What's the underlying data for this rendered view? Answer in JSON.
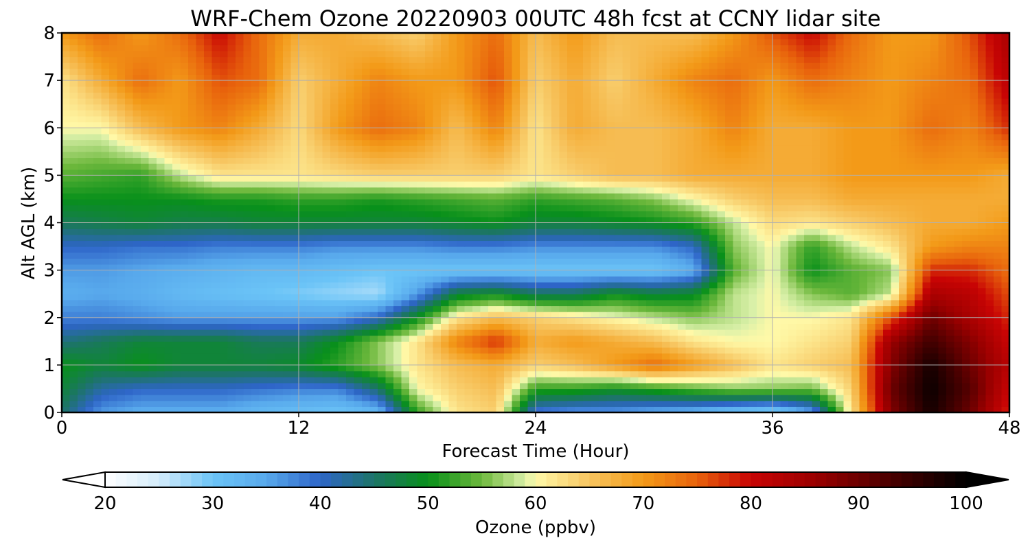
{
  "chart_data": {
    "type": "heatmap",
    "title": "WRF-Chem Ozone  20220903 00UTC 48h fcst at CCNY lidar site",
    "xlabel": "Forecast Time (Hour)",
    "ylabel": "Alt AGL (km)",
    "xlim": [
      0,
      48
    ],
    "ylim": [
      0,
      8
    ],
    "xticks": [
      0,
      12,
      24,
      36,
      48
    ],
    "yticks": [
      0,
      1,
      2,
      3,
      4,
      5,
      6,
      7,
      8
    ],
    "grid": true,
    "x": [
      0,
      2,
      4,
      6,
      8,
      10,
      12,
      14,
      16,
      18,
      20,
      22,
      24,
      26,
      28,
      30,
      32,
      34,
      36,
      38,
      40,
      42,
      44,
      46,
      48
    ],
    "y": [
      0,
      0.5,
      1,
      1.5,
      2,
      2.5,
      3,
      3.5,
      4,
      4.5,
      5,
      6,
      7,
      8
    ],
    "z": [
      [
        45,
        36,
        34,
        34,
        34,
        32,
        31,
        30,
        32,
        52,
        62,
        64,
        38,
        36,
        36,
        34,
        33,
        30,
        28,
        35,
        62,
        88,
        98,
        90,
        78
      ],
      [
        48,
        42,
        40,
        40,
        40,
        39,
        38,
        38,
        45,
        60,
        64,
        66,
        52,
        52,
        50,
        52,
        54,
        56,
        56,
        55,
        64,
        90,
        99,
        92,
        80
      ],
      [
        50,
        48,
        50,
        48,
        48,
        48,
        49,
        52,
        56,
        62,
        66,
        68,
        64,
        66,
        70,
        74,
        70,
        66,
        62,
        64,
        66,
        88,
        98,
        90,
        82
      ],
      [
        44,
        46,
        48,
        48,
        48,
        46,
        46,
        50,
        56,
        62,
        72,
        78,
        68,
        70,
        68,
        66,
        62,
        60,
        60,
        62,
        64,
        86,
        94,
        88,
        80
      ],
      [
        38,
        38,
        37,
        36,
        36,
        36,
        36,
        36,
        40,
        50,
        62,
        66,
        64,
        62,
        60,
        58,
        56,
        58,
        60,
        60,
        62,
        76,
        90,
        84,
        78
      ],
      [
        34,
        35,
        34,
        32,
        31,
        30,
        29,
        28,
        27,
        36,
        48,
        50,
        46,
        46,
        50,
        48,
        49,
        58,
        60,
        56,
        54,
        58,
        84,
        82,
        76
      ],
      [
        36,
        36,
        35,
        34,
        33,
        32,
        32,
        31,
        30,
        30,
        30,
        30,
        30,
        30,
        30,
        30,
        34,
        54,
        60,
        50,
        54,
        56,
        78,
        78,
        74
      ],
      [
        40,
        40,
        39,
        39,
        38,
        38,
        38,
        37,
        37,
        37,
        38,
        38,
        37,
        37,
        37,
        37,
        40,
        56,
        60,
        52,
        58,
        62,
        70,
        72,
        72
      ],
      [
        46,
        47,
        48,
        47,
        47,
        48,
        48,
        48,
        48,
        48,
        49,
        50,
        48,
        48,
        49,
        50,
        52,
        58,
        63,
        62,
        64,
        66,
        68,
        68,
        70
      ],
      [
        50,
        50,
        50,
        50,
        51,
        51,
        52,
        52,
        51,
        52,
        53,
        54,
        52,
        53,
        54,
        56,
        60,
        64,
        66,
        66,
        68,
        68,
        68,
        68,
        68
      ],
      [
        54,
        53,
        52,
        58,
        62,
        62,
        62,
        63,
        64,
        64,
        64,
        64,
        62,
        64,
        66,
        66,
        68,
        68,
        68,
        68,
        70,
        70,
        70,
        70,
        68
      ],
      [
        60,
        60,
        66,
        70,
        72,
        68,
        63,
        70,
        74,
        72,
        66,
        72,
        62,
        68,
        66,
        66,
        68,
        72,
        68,
        68,
        70,
        70,
        74,
        72,
        78
      ],
      [
        62,
        68,
        74,
        70,
        76,
        74,
        64,
        68,
        72,
        70,
        70,
        76,
        64,
        68,
        64,
        68,
        72,
        74,
        70,
        74,
        72,
        70,
        72,
        74,
        82
      ],
      [
        70,
        74,
        70,
        74,
        80,
        74,
        68,
        68,
        66,
        64,
        70,
        74,
        66,
        70,
        66,
        66,
        66,
        70,
        76,
        80,
        74,
        70,
        70,
        76,
        84
      ]
    ],
    "colorbar": {
      "label": "Ozone  (ppbv)",
      "min": 20,
      "max": 100,
      "ticks": [
        20,
        30,
        40,
        50,
        60,
        70,
        80,
        90,
        100
      ],
      "extend": "both",
      "stops": [
        {
          "v": 20,
          "c": "#ffffff"
        },
        {
          "v": 25,
          "c": "#d4ecfb"
        },
        {
          "v": 30,
          "c": "#6bc4f7"
        },
        {
          "v": 35,
          "c": "#58a9ec"
        },
        {
          "v": 40,
          "c": "#2e65c8"
        },
        {
          "v": 45,
          "c": "#1d7468"
        },
        {
          "v": 50,
          "c": "#08901a"
        },
        {
          "v": 55,
          "c": "#6db83c"
        },
        {
          "v": 59,
          "c": "#d9f0a8"
        },
        {
          "v": 60,
          "c": "#fff9a8"
        },
        {
          "v": 65,
          "c": "#f7c560"
        },
        {
          "v": 70,
          "c": "#f39a18"
        },
        {
          "v": 75,
          "c": "#e8620c"
        },
        {
          "v": 80,
          "c": "#c80404"
        },
        {
          "v": 86,
          "c": "#9a0000"
        },
        {
          "v": 93,
          "c": "#4a0000"
        },
        {
          "v": 100,
          "c": "#000000"
        }
      ]
    }
  }
}
